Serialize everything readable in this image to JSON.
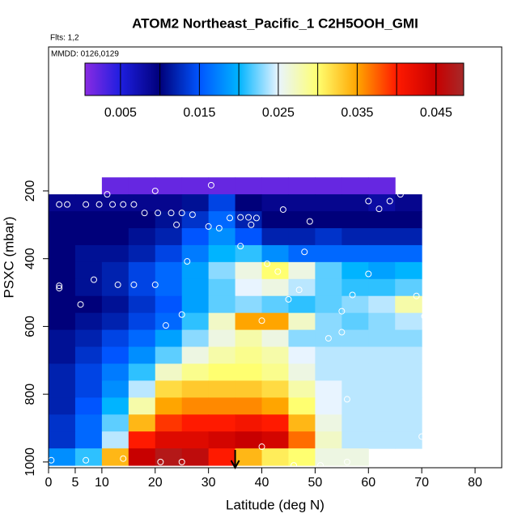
{
  "chart_data": {
    "type": "heatmap",
    "title": "ATOM2 Northeast_Pacific_1 C2H5OOH_GMI",
    "annotations": [
      "Flts: 1,2",
      "MMDD: 0126,0129"
    ],
    "x_label": "Latitude (deg N)",
    "y_label": "PSXC (mbar)",
    "xlim": [
      0,
      85
    ],
    "xticks": [
      0,
      5,
      10,
      20,
      30,
      40,
      50,
      60,
      70,
      80
    ],
    "ylim": [
      1017,
      -225
    ],
    "yticks": [
      200,
      400,
      600,
      800,
      1000
    ],
    "zlim": [
      0.0005,
      0.0485
    ],
    "colorbar_ticks": [
      0.005,
      0.015,
      0.025,
      0.035,
      0.045
    ],
    "colorbar_lines": [
      0.01,
      0.02,
      0.03,
      0.04
    ],
    "colorscale": [
      [
        0.0005,
        "#8a2be2"
      ],
      [
        0.005,
        "#1e1ee0"
      ],
      [
        0.01,
        "#00007a"
      ],
      [
        0.015,
        "#0055ff"
      ],
      [
        0.02,
        "#00b4ff"
      ],
      [
        0.025,
        "#e8f4ff"
      ],
      [
        0.03,
        "#ffff70"
      ],
      [
        0.035,
        "#ffa500"
      ],
      [
        0.04,
        "#ff1a00"
      ],
      [
        0.045,
        "#c80000"
      ],
      [
        0.0485,
        "#a52a2a"
      ]
    ],
    "x": [
      2.5,
      7.5,
      12.5,
      17.5,
      22.5,
      27.5,
      32.5,
      37.5,
      42.5,
      47.5,
      52.5,
      57.5,
      62.5,
      67.5,
      72.5
    ],
    "y": [
      185,
      235,
      285,
      335,
      385,
      435,
      485,
      535,
      585,
      635,
      685,
      735,
      785,
      835,
      885,
      935,
      985
    ],
    "z": [
      [
        null,
        null,
        0.002,
        0.002,
        0.002,
        0.002,
        0.002,
        0.002,
        0.002,
        0.002,
        0.002,
        0.002,
        0.002,
        null,
        null
      ],
      [
        0.009,
        0.009,
        0.009,
        0.009,
        0.009,
        0.011,
        0.014,
        0.01,
        0.009,
        0.009,
        0.009,
        0.009,
        0.008,
        0.009,
        null
      ],
      [
        0.01,
        0.01,
        0.01,
        0.01,
        0.011,
        0.013,
        0.016,
        0.012,
        0.01,
        0.01,
        0.01,
        0.01,
        0.01,
        0.01,
        null
      ],
      [
        0.01,
        0.01,
        0.01,
        0.011,
        0.012,
        0.015,
        0.018,
        0.015,
        0.012,
        0.012,
        0.013,
        0.012,
        0.012,
        0.012,
        null
      ],
      [
        0.01,
        0.011,
        0.011,
        0.012,
        0.014,
        0.017,
        0.02,
        0.021,
        0.018,
        0.016,
        0.016,
        0.016,
        0.016,
        0.016,
        null
      ],
      [
        0.01,
        0.011,
        0.012,
        0.014,
        0.016,
        0.019,
        0.023,
        0.026,
        0.03,
        0.026,
        0.022,
        0.02,
        0.019,
        0.02,
        null
      ],
      [
        0.01,
        0.011,
        0.012,
        0.014,
        0.016,
        0.019,
        0.022,
        0.025,
        0.026,
        0.024,
        0.022,
        0.021,
        0.021,
        0.022,
        null
      ],
      [
        0.01,
        0.01,
        0.011,
        0.013,
        0.015,
        0.019,
        0.022,
        0.023,
        0.022,
        0.021,
        0.022,
        0.023,
        0.024,
        0.028,
        null
      ],
      [
        0.01,
        0.011,
        0.012,
        0.014,
        0.016,
        0.021,
        0.027,
        0.035,
        0.035,
        0.027,
        0.023,
        0.022,
        0.023,
        0.024,
        null
      ],
      [
        0.011,
        0.012,
        0.014,
        0.016,
        0.019,
        0.023,
        0.026,
        0.028,
        0.026,
        0.023,
        0.023,
        0.023,
        0.023,
        0.023,
        null
      ],
      [
        0.011,
        0.013,
        0.015,
        0.018,
        0.022,
        0.026,
        0.028,
        0.029,
        0.028,
        0.025,
        0.024,
        0.024,
        0.024,
        0.024,
        null
      ],
      [
        0.012,
        0.014,
        0.017,
        0.021,
        0.027,
        0.029,
        0.03,
        0.03,
        0.029,
        0.026,
        0.024,
        0.024,
        0.024,
        0.024,
        null
      ],
      [
        0.012,
        0.014,
        0.018,
        0.024,
        0.032,
        0.033,
        0.033,
        0.033,
        0.032,
        0.028,
        0.025,
        0.024,
        0.024,
        0.024,
        null
      ],
      [
        0.012,
        0.015,
        0.02,
        0.028,
        0.035,
        0.036,
        0.036,
        0.036,
        0.035,
        0.03,
        0.025,
        0.024,
        0.024,
        0.024,
        null
      ],
      [
        0.013,
        0.016,
        0.022,
        0.034,
        0.039,
        0.04,
        0.04,
        0.041,
        0.04,
        0.034,
        0.026,
        0.024,
        0.024,
        0.024,
        null
      ],
      [
        0.013,
        0.016,
        0.024,
        0.04,
        0.043,
        0.043,
        0.044,
        0.045,
        0.044,
        0.037,
        0.027,
        0.024,
        0.024,
        0.024,
        null
      ],
      [
        0.018,
        0.021,
        0.034,
        0.045,
        0.047,
        0.046,
        0.04,
        0.034,
        0.031,
        0.03,
        0.026,
        0.026,
        null,
        null,
        null
      ]
    ],
    "points": {
      "color": "#ffffff",
      "x": [
        11,
        20,
        30.5,
        66,
        60,
        64,
        62,
        2,
        3.5,
        7,
        9.5,
        12,
        14,
        16,
        18,
        20.5,
        23,
        24,
        25,
        27,
        30,
        32,
        34,
        36,
        37.5,
        38,
        39,
        44,
        49,
        36,
        48,
        41,
        26,
        43,
        60,
        2,
        2,
        8.5,
        13,
        16,
        20,
        47,
        45,
        6,
        57,
        69,
        70.5,
        25,
        22,
        40,
        55,
        55,
        52.5,
        56,
        70,
        40,
        0.5,
        7,
        14,
        21,
        25,
        51,
        56,
        46
      ],
      "y": [
        210,
        200,
        183,
        210,
        230,
        230,
        253,
        240,
        240,
        240,
        240,
        240,
        240,
        240,
        265,
        265,
        265,
        300,
        265,
        270,
        305,
        310,
        280,
        278,
        278,
        300,
        280,
        255,
        290,
        363,
        380,
        415,
        408,
        438,
        445,
        480,
        487,
        462,
        477,
        477,
        477,
        492,
        520,
        535,
        507,
        510,
        570,
        565,
        597,
        583,
        555,
        617,
        635,
        815,
        925,
        955,
        995,
        995,
        990,
        1000,
        1000,
        1010,
        1000,
        1010
      ]
    },
    "marker_x": 35
  }
}
